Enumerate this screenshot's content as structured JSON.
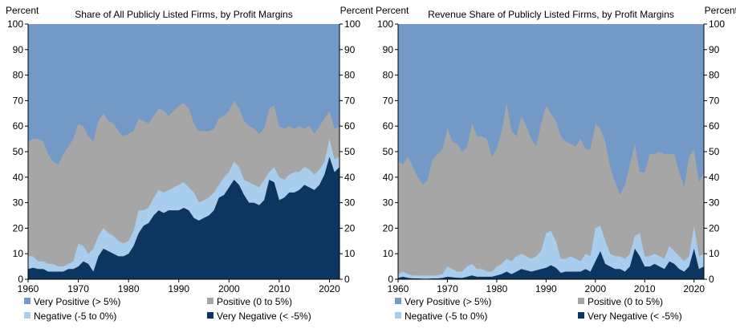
{
  "chart_data": [
    {
      "type": "area",
      "title": "Share of All Publicly Listed Firms, by Profit Margins",
      "ylabel_left": "Percent",
      "ylabel_right": "Percent",
      "xlabel": "",
      "x": [
        1960,
        1961,
        1962,
        1963,
        1964,
        1965,
        1966,
        1967,
        1968,
        1969,
        1970,
        1971,
        1972,
        1973,
        1974,
        1975,
        1976,
        1977,
        1978,
        1979,
        1980,
        1981,
        1982,
        1983,
        1984,
        1985,
        1986,
        1987,
        1988,
        1989,
        1990,
        1991,
        1992,
        1993,
        1994,
        1995,
        1996,
        1997,
        1998,
        1999,
        2000,
        2001,
        2002,
        2003,
        2004,
        2005,
        2006,
        2007,
        2008,
        2009,
        2010,
        2011,
        2012,
        2013,
        2014,
        2015,
        2016,
        2017,
        2018,
        2019,
        2020,
        2021,
        2022
      ],
      "xlim": [
        1960,
        2022
      ],
      "ylim": [
        0,
        100
      ],
      "xticks": [
        1960,
        1970,
        1980,
        1990,
        2000,
        2010,
        2020
      ],
      "yticks": [
        0,
        10,
        20,
        30,
        40,
        50,
        60,
        70,
        80,
        90,
        100
      ],
      "grid": false,
      "legend_placement": "bottom",
      "stacking": "cumulative",
      "series": [
        {
          "name": "Very Negative (< -5%)",
          "color": "#0c3560",
          "values": [
            4,
            4.5,
            4,
            4,
            3,
            3,
            3,
            3,
            4,
            4,
            5,
            7,
            6,
            3,
            9,
            12,
            11,
            10,
            9,
            9,
            10,
            13,
            18,
            21,
            22,
            25,
            27,
            26,
            27,
            27,
            27,
            28,
            27,
            24,
            23,
            24,
            25,
            27,
            32,
            33,
            36,
            39,
            37,
            33,
            30,
            30,
            29,
            31,
            39,
            38,
            31,
            32,
            34,
            34,
            35,
            37,
            36,
            35,
            37,
            41,
            48,
            42,
            44
          ]
        },
        {
          "name": "Negative (-5 to 0%)",
          "color": "#a9cdec",
          "values": [
            9,
            9,
            7,
            7,
            6,
            6,
            5,
            5,
            6,
            7,
            14,
            13,
            10,
            12,
            17,
            20,
            18,
            17,
            15,
            14,
            15,
            19,
            27,
            27,
            28,
            32,
            35,
            34,
            35,
            36,
            37,
            38,
            36,
            34,
            30,
            31,
            32,
            34,
            37,
            40,
            42,
            46,
            44,
            39,
            38,
            37,
            36,
            39,
            42,
            44,
            40,
            39,
            41,
            42,
            42,
            44,
            43,
            41,
            43,
            46,
            55,
            47,
            48
          ]
        },
        {
          "name": "Positive (0 to 5%)",
          "color": "#a6a6a6",
          "values": [
            54,
            55,
            55,
            54,
            49,
            46,
            45,
            49,
            52,
            55,
            61,
            60,
            56,
            54,
            62,
            65,
            62,
            61,
            58,
            56,
            57,
            58,
            63,
            62,
            61,
            64,
            67,
            66,
            64,
            66,
            68,
            69,
            67,
            61,
            58,
            58,
            58,
            59,
            63,
            64,
            66,
            70,
            67,
            62,
            60,
            59,
            57,
            59,
            67,
            68,
            60,
            59,
            60,
            59,
            60,
            59,
            60,
            57,
            60,
            63,
            66,
            59,
            60
          ]
        },
        {
          "name": "Very Positive (> 5%)",
          "color": "#7399c6",
          "values": [
            100,
            100,
            100,
            100,
            100,
            100,
            100,
            100,
            100,
            100,
            100,
            100,
            100,
            100,
            100,
            100,
            100,
            100,
            100,
            100,
            100,
            100,
            100,
            100,
            100,
            100,
            100,
            100,
            100,
            100,
            100,
            100,
            100,
            100,
            100,
            100,
            100,
            100,
            100,
            100,
            100,
            100,
            100,
            100,
            100,
            100,
            100,
            100,
            100,
            100,
            100,
            100,
            100,
            100,
            100,
            100,
            100,
            100,
            100,
            100,
            100,
            100,
            100
          ]
        }
      ],
      "legend": [
        {
          "label": "Very Positive (> 5%)",
          "color": "#7399c6"
        },
        {
          "label": "Positive (0 to 5%)",
          "color": "#a6a6a6"
        },
        {
          "label": "Negative (-5 to 0%)",
          "color": "#a9cdec"
        },
        {
          "label": "Very Negative (< -5%)",
          "color": "#0c3560"
        }
      ]
    },
    {
      "type": "area",
      "title": "Revenue Share of Publicly Listed Firms, by Profit Margins",
      "ylabel_left": "Percent",
      "ylabel_right": "Percent",
      "xlabel": "",
      "x": [
        1960,
        1961,
        1962,
        1963,
        1964,
        1965,
        1966,
        1967,
        1968,
        1969,
        1970,
        1971,
        1972,
        1973,
        1974,
        1975,
        1976,
        1977,
        1978,
        1979,
        1980,
        1981,
        1982,
        1983,
        1984,
        1985,
        1986,
        1987,
        1988,
        1989,
        1990,
        1991,
        1992,
        1993,
        1994,
        1995,
        1996,
        1997,
        1998,
        1999,
        2000,
        2001,
        2002,
        2003,
        2004,
        2005,
        2006,
        2007,
        2008,
        2009,
        2010,
        2011,
        2012,
        2013,
        2014,
        2015,
        2016,
        2017,
        2018,
        2019,
        2020,
        2021,
        2022
      ],
      "xlim": [
        1960,
        2022
      ],
      "ylim": [
        0,
        100
      ],
      "xticks": [
        1960,
        1970,
        1980,
        1990,
        2000,
        2010,
        2020
      ],
      "yticks": [
        0,
        10,
        20,
        30,
        40,
        50,
        60,
        70,
        80,
        90,
        100
      ],
      "grid": false,
      "legend_placement": "bottom",
      "stacking": "cumulative",
      "series": [
        {
          "name": "Very Negative (< -5%)",
          "color": "#0c3560",
          "values": [
            0.5,
            1,
            0.5,
            0.3,
            0.3,
            0.2,
            0.2,
            0.3,
            0.3,
            0.5,
            1,
            0.8,
            0.6,
            0.5,
            1,
            1.5,
            1,
            1,
            1,
            1,
            1.5,
            2,
            3,
            2,
            3,
            4,
            3.5,
            3,
            3.5,
            4,
            4.5,
            5.5,
            4.5,
            2.5,
            3,
            3,
            3,
            3,
            4,
            3,
            7,
            11,
            6,
            5,
            4,
            4,
            3,
            5,
            12,
            9,
            5,
            5,
            6,
            5,
            4,
            7,
            6,
            4,
            3,
            5,
            12,
            4,
            5
          ]
        },
        {
          "name": "Negative (-5 to 0%)",
          "color": "#a9cdec",
          "values": [
            2,
            3,
            2,
            1.5,
            1.5,
            1.5,
            1.5,
            1.5,
            1.5,
            2,
            5,
            4,
            3,
            3,
            5,
            6,
            4,
            4,
            3,
            3,
            5,
            6,
            8,
            7,
            9,
            10,
            9,
            8,
            9,
            11,
            18,
            19,
            15,
            8,
            8,
            9,
            8,
            7,
            10,
            9,
            20,
            21,
            15,
            10,
            9,
            9,
            8,
            10,
            17,
            18,
            9,
            9,
            10,
            9,
            8,
            13,
            11,
            9,
            7,
            9,
            21,
            9,
            10
          ]
        },
        {
          "name": "Positive (0 to 5%)",
          "color": "#a6a6a6",
          "values": [
            46,
            45,
            48,
            44,
            40,
            37,
            39,
            47,
            49,
            51,
            59,
            54,
            53,
            50,
            52,
            61,
            56,
            56,
            55,
            48,
            51,
            58,
            69,
            58,
            56,
            64,
            60,
            55,
            52,
            61,
            68,
            65,
            62,
            56,
            54,
            53,
            52,
            55,
            51,
            51,
            61,
            59,
            54,
            44,
            38,
            33,
            37,
            45,
            53,
            42,
            42,
            49,
            49,
            50,
            49,
            49,
            49,
            42,
            36,
            48,
            51,
            38,
            42
          ]
        },
        {
          "name": "Very Positive (> 5%)",
          "color": "#7399c6",
          "values": [
            100,
            100,
            100,
            100,
            100,
            100,
            100,
            100,
            100,
            100,
            100,
            100,
            100,
            100,
            100,
            100,
            100,
            100,
            100,
            100,
            100,
            100,
            100,
            100,
            100,
            100,
            100,
            100,
            100,
            100,
            100,
            100,
            100,
            100,
            100,
            100,
            100,
            100,
            100,
            100,
            100,
            100,
            100,
            100,
            100,
            100,
            100,
            100,
            100,
            100,
            100,
            100,
            100,
            100,
            100,
            100,
            100,
            100,
            100,
            100,
            100,
            100,
            100
          ]
        }
      ],
      "legend": [
        {
          "label": "Very Positive (> 5%)",
          "color": "#7399c6"
        },
        {
          "label": "Positive (0 to 5%)",
          "color": "#a6a6a6"
        },
        {
          "label": "Negative (-5 to 0%)",
          "color": "#a9cdec"
        },
        {
          "label": "Very Negative (< -5%)",
          "color": "#0c3560"
        }
      ]
    }
  ]
}
